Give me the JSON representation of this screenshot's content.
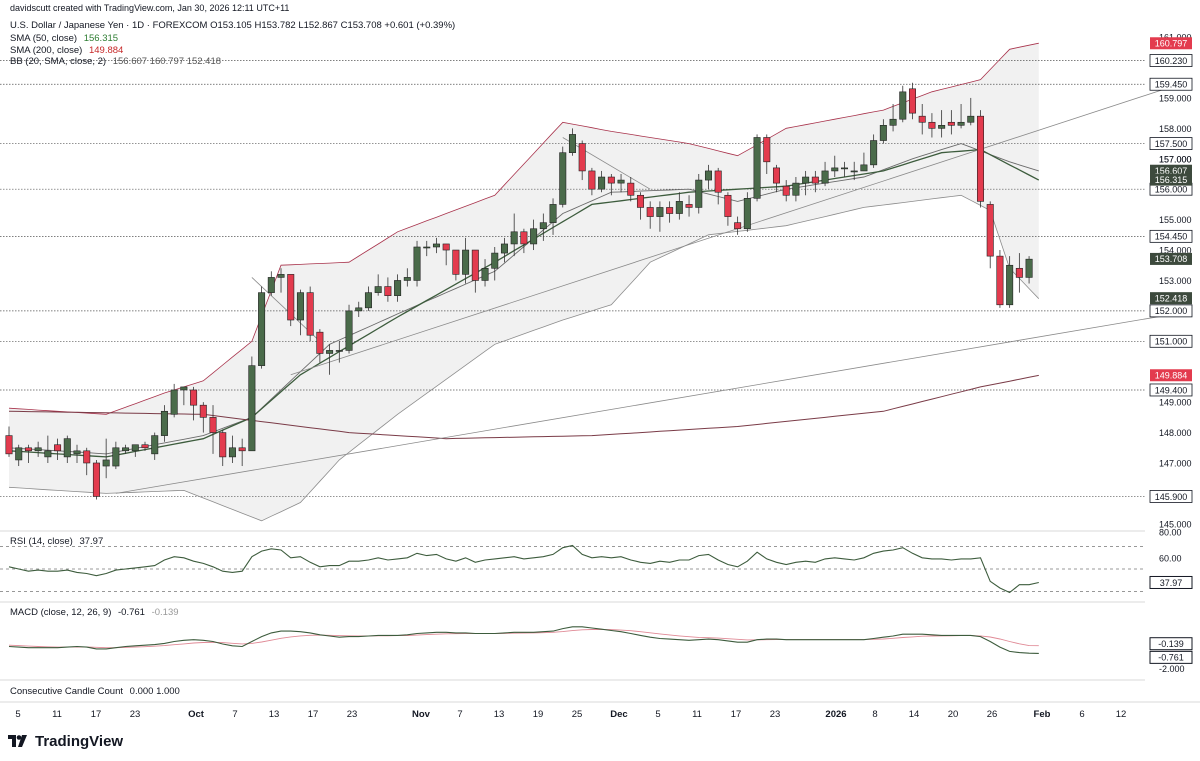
{
  "header": {
    "credit": "davidscutt created with TradingView.com, Jan 30, 2026 12:11 UTC+11",
    "symbol_line": "U.S. Dollar / Japanese Yen · 1D · FOREXCOM",
    "ohlc": "O153.105 H153.782 L152.867 C153.708 +0.601 (+0.39%)",
    "sma50_label": "SMA (50, close)",
    "sma50_value": "156.315",
    "sma200_label": "SMA (200, close)",
    "sma200_value": "149.884",
    "bb_label": "BB (20, SMA, close, 2)",
    "bb_values": "156.607  160.797  152.418"
  },
  "rsi_label": "RSI (14, close)",
  "rsi_value": "37.97",
  "macd_label": "MACD (close, 12, 26, 9)",
  "macd_value": "-0.761",
  "macd_signal_value": "-0.139",
  "ccc_label": "Consecutive Candle Count",
  "ccc_values": "0.000  1.000",
  "logo_text": "TradingView",
  "colors": {
    "up": "#4a6b4a",
    "down": "#e33b4e",
    "bb_band": "#a8324b",
    "sma": "#3d5c3d",
    "grey": "#9e9e9e",
    "label_dark": "#3d4a3d",
    "label_red": "#e33b4e"
  },
  "chart_data": {
    "type": "candlestick",
    "symbol": "USDJPY",
    "interval": "1D",
    "x_tick_labels": [
      "5",
      "11",
      "17",
      "23",
      "Oct",
      "7",
      "13",
      "17",
      "23",
      "Nov",
      "7",
      "13",
      "19",
      "25",
      "Dec",
      "5",
      "11",
      "17",
      "23",
      "2026",
      "8",
      "14",
      "20",
      "26",
      "Feb",
      "6",
      "12"
    ],
    "price_axis_ticks": [
      161.0,
      160.0,
      159.0,
      158.0,
      157.0,
      156.0,
      155.0,
      154.0,
      153.0,
      152.0,
      151.0,
      150.0,
      149.0,
      148.0,
      147.0,
      146.0,
      145.0
    ],
    "price_axis_labels": [
      "161.000",
      "159.000",
      "158.000",
      "157.000",
      "156.000",
      "155.000",
      "154.000",
      "153.000",
      "152.000",
      "151.000",
      "149.000",
      "148.000",
      "147.000",
      "145.000"
    ],
    "ylim": [
      144.6,
      161.2
    ],
    "horizontal_levels": [
      160.23,
      159.45,
      157.5,
      156.0,
      154.45,
      152.0,
      151.0,
      149.4,
      145.9
    ],
    "horizontal_level_labels": [
      "160.230",
      "159.450",
      "157.500",
      "156.000",
      "154.450",
      "152.000",
      "151.000",
      "149.400",
      "145.900"
    ],
    "price_labels": [
      {
        "text": "160.797",
        "value": 160.797,
        "kind": "red"
      },
      {
        "text": "156.607",
        "value": 156.607,
        "kind": "dark"
      },
      {
        "text": "156.315",
        "value": 156.315,
        "kind": "dark"
      },
      {
        "text": "153.708",
        "value": 153.708,
        "kind": "dark"
      },
      {
        "text": "152.418",
        "value": 152.418,
        "kind": "dark"
      },
      {
        "text": "149.884",
        "value": 149.884,
        "kind": "red"
      }
    ],
    "level_label_157": "157.000",
    "candles": [
      [
        147.9,
        147.3,
        148.2,
        147.2
      ],
      [
        147.1,
        147.5,
        147.6,
        146.9
      ],
      [
        147.5,
        147.4,
        147.6,
        147.0
      ],
      [
        147.4,
        147.5,
        147.7,
        147.2
      ],
      [
        147.2,
        147.4,
        147.9,
        147.0
      ],
      [
        147.6,
        147.4,
        147.8,
        147.1
      ],
      [
        147.2,
        147.8,
        147.9,
        147.0
      ],
      [
        147.3,
        147.4,
        147.6,
        147.0
      ],
      [
        147.4,
        147.0,
        147.5,
        146.6
      ],
      [
        147.0,
        145.9,
        147.1,
        145.8
      ],
      [
        146.9,
        147.1,
        147.8,
        146.5
      ],
      [
        146.9,
        147.5,
        147.7,
        146.8
      ],
      [
        147.4,
        147.5,
        147.6,
        147.3
      ],
      [
        147.4,
        147.6,
        147.6,
        147.2
      ],
      [
        147.6,
        147.5,
        147.7,
        147.4
      ],
      [
        147.3,
        147.9,
        148.0,
        147.1
      ],
      [
        147.9,
        148.7,
        148.9,
        147.7
      ],
      [
        148.6,
        149.4,
        149.6,
        148.5
      ],
      [
        149.4,
        149.5,
        149.5,
        148.9
      ],
      [
        149.4,
        148.9,
        149.5,
        148.4
      ],
      [
        148.9,
        148.5,
        149.0,
        148.0
      ],
      [
        148.5,
        148.0,
        148.9,
        147.3
      ],
      [
        148.0,
        147.2,
        148.1,
        146.9
      ],
      [
        147.2,
        147.5,
        147.9,
        147.0
      ],
      [
        147.5,
        147.4,
        147.8,
        146.9
      ],
      [
        147.4,
        150.2,
        150.5,
        147.4
      ],
      [
        150.2,
        152.6,
        152.8,
        150.1
      ],
      [
        152.6,
        153.1,
        153.3,
        152.5
      ],
      [
        153.1,
        153.2,
        153.4,
        152.6
      ],
      [
        153.2,
        151.7,
        153.1,
        151.5
      ],
      [
        151.7,
        152.6,
        152.7,
        151.2
      ],
      [
        152.6,
        151.2,
        152.8,
        151.0
      ],
      [
        151.3,
        150.6,
        151.4,
        150.3
      ],
      [
        150.6,
        150.7,
        150.9,
        149.9
      ],
      [
        150.7,
        150.7,
        151.0,
        150.3
      ],
      [
        150.7,
        152.0,
        152.2,
        150.6
      ],
      [
        152.0,
        152.1,
        152.3,
        151.8
      ],
      [
        152.1,
        152.6,
        152.8,
        152.0
      ],
      [
        152.6,
        152.8,
        153.2,
        152.5
      ],
      [
        152.8,
        152.5,
        153.1,
        152.3
      ],
      [
        152.5,
        153.0,
        153.2,
        152.3
      ],
      [
        153.0,
        153.1,
        153.4,
        152.8
      ],
      [
        153.0,
        154.1,
        154.3,
        152.8
      ],
      [
        154.1,
        154.1,
        154.3,
        153.8
      ],
      [
        154.1,
        154.2,
        154.4,
        153.9
      ],
      [
        154.2,
        154.0,
        154.2,
        153.5
      ],
      [
        154.0,
        153.2,
        154.0,
        153.0
      ],
      [
        153.2,
        154.0,
        154.4,
        152.9
      ],
      [
        154.0,
        153.0,
        154.0,
        152.6
      ],
      [
        153.0,
        153.4,
        153.7,
        152.8
      ],
      [
        153.4,
        153.9,
        154.1,
        153.0
      ],
      [
        153.9,
        154.2,
        154.4,
        153.6
      ],
      [
        154.2,
        154.6,
        155.2,
        153.8
      ],
      [
        154.6,
        154.2,
        154.7,
        153.9
      ],
      [
        154.2,
        154.7,
        155.0,
        154.0
      ],
      [
        154.7,
        154.9,
        155.2,
        154.3
      ],
      [
        154.9,
        155.5,
        155.7,
        154.5
      ],
      [
        155.5,
        157.2,
        157.4,
        155.4
      ],
      [
        157.2,
        157.8,
        158.0,
        157.1
      ],
      [
        157.5,
        156.6,
        157.6,
        156.3
      ],
      [
        156.6,
        156.0,
        156.7,
        155.8
      ],
      [
        156.0,
        156.4,
        156.6,
        155.9
      ],
      [
        156.4,
        156.2,
        156.5,
        155.8
      ],
      [
        156.2,
        156.3,
        156.5,
        155.9
      ],
      [
        156.2,
        155.8,
        156.4,
        155.6
      ],
      [
        155.8,
        155.4,
        155.9,
        155.0
      ],
      [
        155.4,
        155.1,
        155.6,
        154.7
      ],
      [
        155.1,
        155.4,
        155.6,
        154.6
      ],
      [
        155.4,
        155.2,
        155.6,
        154.9
      ],
      [
        155.2,
        155.6,
        155.9,
        155.0
      ],
      [
        155.5,
        155.4,
        155.8,
        155.1
      ],
      [
        155.4,
        156.3,
        156.5,
        155.2
      ],
      [
        156.3,
        156.6,
        156.8,
        156.0
      ],
      [
        156.6,
        155.9,
        156.7,
        155.5
      ],
      [
        155.8,
        155.1,
        155.9,
        154.8
      ],
      [
        154.9,
        154.7,
        155.1,
        154.5
      ],
      [
        154.7,
        155.7,
        155.9,
        154.6
      ],
      [
        155.7,
        157.7,
        157.8,
        155.6
      ],
      [
        157.7,
        156.9,
        157.8,
        156.5
      ],
      [
        156.7,
        156.2,
        156.8,
        155.9
      ],
      [
        156.1,
        155.8,
        156.3,
        155.6
      ],
      [
        155.8,
        156.2,
        156.4,
        155.6
      ],
      [
        156.2,
        156.4,
        156.6,
        155.8
      ],
      [
        156.4,
        156.2,
        156.6,
        155.9
      ],
      [
        156.2,
        156.6,
        156.9,
        156.1
      ],
      [
        156.6,
        156.7,
        157.1,
        156.4
      ],
      [
        156.7,
        156.7,
        156.9,
        156.4
      ],
      [
        156.6,
        156.6,
        156.9,
        156.3
      ],
      [
        156.6,
        156.8,
        157.2,
        156.6
      ],
      [
        156.8,
        157.6,
        157.8,
        156.7
      ],
      [
        157.6,
        158.1,
        158.3,
        157.5
      ],
      [
        158.1,
        158.3,
        158.8,
        157.9
      ],
      [
        158.3,
        159.2,
        159.4,
        158.2
      ],
      [
        159.3,
        158.5,
        159.5,
        158.3
      ],
      [
        158.4,
        158.2,
        158.8,
        157.8
      ],
      [
        158.2,
        158.0,
        158.5,
        157.7
      ],
      [
        158.0,
        158.1,
        158.6,
        157.7
      ],
      [
        158.2,
        158.1,
        158.6,
        157.8
      ],
      [
        158.1,
        158.2,
        158.8,
        158.0
      ],
      [
        158.2,
        158.4,
        159.0,
        158.1
      ],
      [
        158.4,
        155.6,
        158.6,
        155.4
      ],
      [
        155.5,
        153.8,
        155.6,
        153.4
      ],
      [
        153.8,
        152.2,
        154.0,
        152.1
      ],
      [
        152.2,
        153.5,
        153.8,
        152.1
      ],
      [
        153.4,
        153.1,
        153.9,
        152.6
      ],
      [
        153.1,
        153.7,
        153.8,
        152.9
      ]
    ],
    "sma50": [
      [
        0,
        147.4
      ],
      [
        10,
        147.2
      ],
      [
        20,
        147.8
      ],
      [
        25,
        148.5
      ],
      [
        30,
        149.9
      ],
      [
        40,
        151.8
      ],
      [
        50,
        153.6
      ],
      [
        60,
        155.5
      ],
      [
        70,
        155.9
      ],
      [
        80,
        156.1
      ],
      [
        90,
        156.6
      ],
      [
        96,
        157.2
      ],
      [
        100,
        157.3
      ],
      [
        106,
        156.3
      ]
    ],
    "sma200": [
      [
        0,
        148.7
      ],
      [
        20,
        148.6
      ],
      [
        35,
        148.0
      ],
      [
        45,
        147.8
      ],
      [
        60,
        147.9
      ],
      [
        75,
        148.2
      ],
      [
        90,
        148.7
      ],
      [
        100,
        149.5
      ],
      [
        106,
        149.88
      ]
    ],
    "bb_upper": [
      [
        0,
        148.8
      ],
      [
        10,
        148.6
      ],
      [
        16,
        149.3
      ],
      [
        20,
        149.7
      ],
      [
        25,
        151.0
      ],
      [
        28,
        153.5
      ],
      [
        35,
        153.6
      ],
      [
        40,
        154.6
      ],
      [
        50,
        155.8
      ],
      [
        57,
        158.2
      ],
      [
        62,
        157.9
      ],
      [
        70,
        157.5
      ],
      [
        75,
        157.1
      ],
      [
        80,
        158.0
      ],
      [
        90,
        158.6
      ],
      [
        95,
        159.2
      ],
      [
        100,
        159.6
      ],
      [
        103,
        160.6
      ],
      [
        106,
        160.8
      ]
    ],
    "bb_mid": [
      [
        0,
        147.5
      ],
      [
        10,
        147.3
      ],
      [
        20,
        147.9
      ],
      [
        25,
        148.5
      ],
      [
        28,
        149.4
      ],
      [
        33,
        150.9
      ],
      [
        40,
        151.9
      ],
      [
        50,
        153.3
      ],
      [
        57,
        155.2
      ],
      [
        62,
        155.9
      ],
      [
        70,
        156.0
      ],
      [
        75,
        155.6
      ],
      [
        80,
        156.0
      ],
      [
        88,
        156.4
      ],
      [
        93,
        157.0
      ],
      [
        98,
        157.5
      ],
      [
        103,
        156.9
      ],
      [
        106,
        156.6
      ]
    ],
    "bb_lower": [
      [
        0,
        146.2
      ],
      [
        10,
        146.0
      ],
      [
        18,
        146.1
      ],
      [
        22,
        145.6
      ],
      [
        26,
        145.1
      ],
      [
        30,
        145.7
      ],
      [
        34,
        147.1
      ],
      [
        40,
        148.6
      ],
      [
        50,
        150.9
      ],
      [
        57,
        151.7
      ],
      [
        62,
        152.2
      ],
      [
        66,
        153.6
      ],
      [
        72,
        154.5
      ],
      [
        80,
        154.8
      ],
      [
        88,
        155.4
      ],
      [
        93,
        155.6
      ],
      [
        98,
        155.8
      ],
      [
        101,
        155.3
      ],
      [
        103,
        153.4
      ],
      [
        106,
        152.4
      ]
    ],
    "trendlines": [
      {
        "p1": [
          11,
          146.0
        ],
        "p2": [
          120,
          151.9
        ]
      },
      {
        "p1": [
          29,
          149.9
        ],
        "p2": [
          120,
          159.4
        ]
      },
      {
        "p1": [
          25,
          153.1
        ],
        "p2": [
          32,
          151.0
        ]
      },
      {
        "p1": [
          57,
          157.7
        ],
        "p2": [
          66,
          156.0
        ]
      }
    ],
    "rsi": {
      "ylim": [
        25,
        75
      ],
      "levels": [
        70,
        50,
        30
      ],
      "axis_labels": [
        "80.00",
        "60.00"
      ],
      "values": [
        52,
        50,
        48,
        49,
        48,
        48,
        49,
        47,
        46,
        44,
        46,
        49,
        50,
        51,
        52,
        53,
        58,
        61,
        60,
        57,
        55,
        52,
        48,
        47,
        48,
        61,
        66,
        68,
        67,
        60,
        61,
        56,
        52,
        53,
        53,
        57,
        57,
        58,
        60,
        58,
        59,
        60,
        64,
        62,
        63,
        59,
        57,
        60,
        56,
        58,
        59,
        60,
        61,
        59,
        60,
        61,
        63,
        69,
        71,
        63,
        60,
        61,
        60,
        61,
        58,
        56,
        55,
        57,
        56,
        58,
        58,
        62,
        63,
        58,
        54,
        52,
        57,
        65,
        59,
        56,
        54,
        56,
        57,
        56,
        59,
        60,
        59,
        58,
        60,
        64,
        66,
        67,
        69,
        64,
        60,
        59,
        59,
        58,
        59,
        59,
        60,
        39,
        33,
        29,
        36,
        36,
        37.97
      ]
    },
    "macd": {
      "ylim": [
        -2.6,
        2.6
      ],
      "axis_labels": [
        "-2.000"
      ],
      "macd": [
        -0.2,
        -0.25,
        -0.3,
        -0.3,
        -0.3,
        -0.3,
        -0.25,
        -0.2,
        -0.25,
        -0.4,
        -0.4,
        -0.3,
        -0.2,
        -0.15,
        -0.1,
        -0.05,
        0.05,
        0.2,
        0.3,
        0.35,
        0.3,
        0.2,
        0.0,
        -0.15,
        -0.2,
        0.2,
        0.6,
        0.9,
        1.05,
        1.05,
        1.0,
        0.9,
        0.75,
        0.65,
        0.55,
        0.6,
        0.6,
        0.65,
        0.7,
        0.7,
        0.7,
        0.75,
        0.85,
        0.9,
        0.95,
        0.95,
        0.9,
        0.9,
        0.85,
        0.85,
        0.85,
        0.9,
        0.95,
        0.95,
        0.95,
        1.0,
        1.05,
        1.25,
        1.4,
        1.4,
        1.3,
        1.2,
        1.1,
        1.0,
        0.85,
        0.7,
        0.55,
        0.45,
        0.4,
        0.35,
        0.3,
        0.35,
        0.4,
        0.35,
        0.25,
        0.15,
        0.15,
        0.35,
        0.4,
        0.4,
        0.35,
        0.35,
        0.35,
        0.35,
        0.35,
        0.35,
        0.35,
        0.35,
        0.35,
        0.45,
        0.55,
        0.65,
        0.8,
        0.8,
        0.8,
        0.75,
        0.7,
        0.7,
        0.7,
        0.7,
        0.6,
        0.2,
        -0.25,
        -0.6,
        -0.7,
        -0.75,
        -0.761
      ],
      "signal": [
        -0.1,
        -0.13,
        -0.17,
        -0.2,
        -0.23,
        -0.25,
        -0.25,
        -0.24,
        -0.24,
        -0.27,
        -0.3,
        -0.3,
        -0.28,
        -0.25,
        -0.22,
        -0.18,
        -0.13,
        -0.06,
        0.01,
        0.08,
        0.12,
        0.14,
        0.11,
        0.06,
        0.01,
        0.05,
        0.16,
        0.31,
        0.46,
        0.58,
        0.66,
        0.71,
        0.72,
        0.71,
        0.68,
        0.67,
        0.66,
        0.66,
        0.67,
        0.67,
        0.68,
        0.69,
        0.72,
        0.76,
        0.8,
        0.83,
        0.84,
        0.85,
        0.85,
        0.85,
        0.85,
        0.86,
        0.88,
        0.89,
        0.9,
        0.92,
        0.95,
        1.01,
        1.09,
        1.15,
        1.18,
        1.18,
        1.17,
        1.13,
        1.08,
        1.0,
        0.91,
        0.82,
        0.74,
        0.66,
        0.59,
        0.54,
        0.51,
        0.48,
        0.43,
        0.38,
        0.33,
        0.34,
        0.35,
        0.36,
        0.36,
        0.36,
        0.36,
        0.36,
        0.36,
        0.36,
        0.36,
        0.36,
        0.36,
        0.38,
        0.41,
        0.46,
        0.53,
        0.58,
        0.63,
        0.65,
        0.66,
        0.67,
        0.68,
        0.68,
        0.66,
        0.57,
        0.41,
        0.2,
        0.02,
        -0.13,
        -0.139
      ]
    }
  }
}
